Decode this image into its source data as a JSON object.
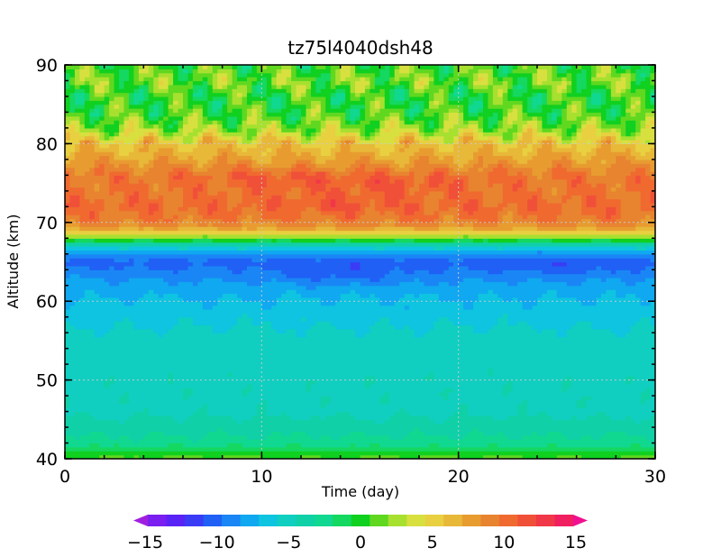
{
  "chart_data": {
    "type": "heatmap",
    "title": "tz75l4040dsh48",
    "xlabel": "Time (day)",
    "ylabel": "Altitude (km)",
    "xlim": [
      0,
      30
    ],
    "ylim": [
      40,
      90
    ],
    "xticks": [
      "0",
      "10",
      "20",
      "30"
    ],
    "yticks": [
      "40",
      "50",
      "60",
      "70",
      "80",
      "90"
    ],
    "grid": true,
    "colorbar": {
      "range": [
        -15,
        15
      ],
      "ticks": [
        "−15",
        "−10",
        "−5",
        "0",
        "5",
        "10",
        "15"
      ],
      "colors": [
        "#9f1fe0",
        "#7a1ff0",
        "#5a23f5",
        "#3a3cf5",
        "#2060f5",
        "#1a86f5",
        "#10a8f0",
        "#0ec4e0",
        "#10cfc0",
        "#10d0a8",
        "#10d890",
        "#14d860",
        "#10d020",
        "#60d820",
        "#a8e030",
        "#d8e040",
        "#e8d040",
        "#e8b838",
        "#e89c30",
        "#e88430",
        "#f06a30",
        "#f05038",
        "#f03848",
        "#f02060",
        "#f01090"
      ]
    },
    "profile": {
      "altitude": [
        40,
        41,
        42,
        44,
        46,
        50,
        55,
        58,
        61,
        63,
        65,
        66,
        67,
        68,
        69,
        70,
        72,
        74,
        76,
        78,
        80,
        82,
        84,
        86,
        88,
        90
      ],
      "value": [
        1.0,
        -0.5,
        -2.5,
        -3.5,
        -4.5,
        -4.5,
        -4.8,
        -5.8,
        -6.8,
        -8.0,
        -9.5,
        -8.0,
        -5.0,
        1.0,
        6.0,
        8.5,
        9.5,
        9.0,
        9.0,
        7.0,
        5.5,
        2.0,
        0.5,
        0.0,
        1.5,
        0.5
      ]
    },
    "features": [
      {
        "t": 11,
        "z": 75.5,
        "value": 10.5
      },
      {
        "t": 14,
        "z": 72.5,
        "value": 10.5
      },
      {
        "t": 17,
        "z": 75,
        "value": 10.5
      },
      {
        "t": 14,
        "z": 63.5,
        "value": -10
      },
      {
        "t": 25,
        "z": 64.5,
        "value": -10
      }
    ]
  }
}
